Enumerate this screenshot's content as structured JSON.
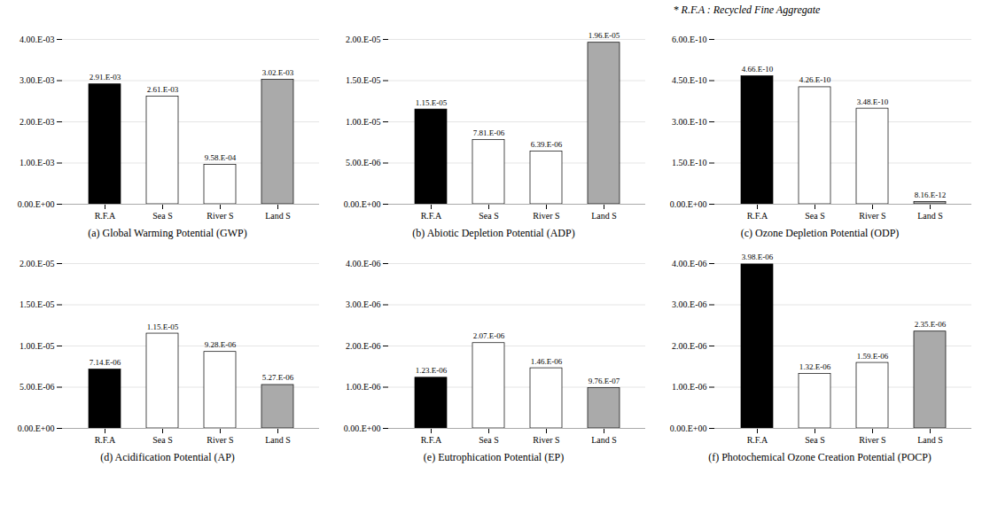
{
  "chart_data": [
    {
      "type": "bar",
      "title": "(a) Global Warming Potential (GWP)",
      "categories": [
        "R.F.A",
        "Sea S",
        "River S",
        "Land S"
      ],
      "values": [
        0.00291,
        0.00261,
        0.000958,
        0.00302
      ],
      "value_labels": [
        "2.91.E-03",
        "2.61.E-03",
        "9.58.E-04",
        "3.02.E-03"
      ],
      "data_labels": true,
      "colors": [
        "#000000",
        "#ffffff",
        "#ffffff",
        "#aaaaaa"
      ],
      "ylim": [
        0,
        0.004
      ],
      "yticks": [
        {
          "value": 0.0,
          "label": "0.00.E+00"
        },
        {
          "value": 0.001,
          "label": "1.00.E-03"
        },
        {
          "value": 0.002,
          "label": "2.00.E-03"
        },
        {
          "value": 0.003,
          "label": "3.00.E-03"
        },
        {
          "value": 0.004,
          "label": "4.00.E-03"
        }
      ],
      "grid": true
    },
    {
      "type": "bar",
      "title": "(b) Abiotic Depletion Potential (ADP)",
      "categories": [
        "R.F.A",
        "Sea S",
        "River S",
        "Land S"
      ],
      "values": [
        1.15e-05,
        7.81e-06,
        6.39e-06,
        1.96e-05
      ],
      "value_labels": [
        "1.15.E-05",
        "7.81.E-06",
        "6.39.E-06",
        "1.96.E-05"
      ],
      "data_labels": true,
      "colors": [
        "#000000",
        "#ffffff",
        "#ffffff",
        "#aaaaaa"
      ],
      "ylim": [
        0,
        2e-05
      ],
      "yticks": [
        {
          "value": 0.0,
          "label": "0.00.E+00"
        },
        {
          "value": 5e-06,
          "label": "5.00.E-06"
        },
        {
          "value": 1e-05,
          "label": "1.00.E-05"
        },
        {
          "value": 1.5e-05,
          "label": "1.50.E-05"
        },
        {
          "value": 2e-05,
          "label": "2.00.E-05"
        }
      ],
      "grid": true
    },
    {
      "type": "bar",
      "title": "(c) Ozone Depletion Potential (ODP)",
      "categories": [
        "R.F.A",
        "Sea S",
        "River S",
        "Land S"
      ],
      "values": [
        4.66e-10,
        4.26e-10,
        3.48e-10,
        8.16e-12
      ],
      "value_labels": [
        "4.66.E-10",
        "4.26.E-10",
        "3.48.E-10",
        "8.16.E-12"
      ],
      "data_labels": true,
      "colors": [
        "#000000",
        "#ffffff",
        "#ffffff",
        "#aaaaaa"
      ],
      "ylim": [
        0,
        6e-10
      ],
      "yticks": [
        {
          "value": 0.0,
          "label": "0.00.E+00"
        },
        {
          "value": 1.5e-10,
          "label": "1.50.E-10"
        },
        {
          "value": 3e-10,
          "label": "3.00.E-10"
        },
        {
          "value": 4.5e-10,
          "label": "4.50.E-10"
        },
        {
          "value": 6e-10,
          "label": "6.00.E-10"
        }
      ],
      "grid": true
    },
    {
      "type": "bar",
      "title": "(d) Acidification Potential (AP)",
      "categories": [
        "R.F.A",
        "Sea S",
        "River S",
        "Land S"
      ],
      "values": [
        7.14e-06,
        1.15e-05,
        9.28e-06,
        5.27e-06
      ],
      "value_labels": [
        "7.14.E-06",
        "1.15.E-05",
        "9.28.E-06",
        "5.27.E-06"
      ],
      "data_labels": true,
      "colors": [
        "#000000",
        "#ffffff",
        "#ffffff",
        "#aaaaaa"
      ],
      "ylim": [
        0,
        2e-05
      ],
      "yticks": [
        {
          "value": 0.0,
          "label": "0.00.E+00"
        },
        {
          "value": 5e-06,
          "label": "5.00.E-06"
        },
        {
          "value": 1e-05,
          "label": "1.00.E-05"
        },
        {
          "value": 1.5e-05,
          "label": "1.50.E-05"
        },
        {
          "value": 2e-05,
          "label": "2.00.E-05"
        }
      ],
      "grid": true
    },
    {
      "type": "bar",
      "title": "(e) Eutrophication Potential (EP)",
      "categories": [
        "R.F.A",
        "Sea S",
        "River S",
        "Land S"
      ],
      "values": [
        1.23e-06,
        2.07e-06,
        1.46e-06,
        9.76e-07
      ],
      "value_labels": [
        "1.23.E-06",
        "2.07.E-06",
        "1.46.E-06",
        "9.76.E-07"
      ],
      "data_labels": true,
      "colors": [
        "#000000",
        "#ffffff",
        "#ffffff",
        "#aaaaaa"
      ],
      "ylim": [
        0,
        4e-06
      ],
      "yticks": [
        {
          "value": 0.0,
          "label": "0.00.E+00"
        },
        {
          "value": 1e-06,
          "label": "1.00.E-06"
        },
        {
          "value": 2e-06,
          "label": "2.00.E-06"
        },
        {
          "value": 3e-06,
          "label": "3.00.E-06"
        },
        {
          "value": 4e-06,
          "label": "4.00.E-06"
        }
      ],
      "grid": true
    },
    {
      "type": "bar",
      "title": "(f) Photochemical Ozone Creation Potential (POCP)",
      "categories": [
        "R.F.A",
        "Sea S",
        "River S",
        "Land S"
      ],
      "values": [
        3.98e-06,
        1.32e-06,
        1.59e-06,
        2.35e-06
      ],
      "value_labels": [
        "3.98.E-06",
        "1.32.E-06",
        "1.59.E-06",
        "2.35.E-06"
      ],
      "data_labels": true,
      "colors": [
        "#000000",
        "#ffffff",
        "#ffffff",
        "#aaaaaa"
      ],
      "ylim": [
        0,
        4e-06
      ],
      "yticks": [
        {
          "value": 0.0,
          "label": "0.00.E+00"
        },
        {
          "value": 1e-06,
          "label": "1.00.E-06"
        },
        {
          "value": 2e-06,
          "label": "2.00.E-06"
        },
        {
          "value": 3e-06,
          "label": "3.00.E-06"
        },
        {
          "value": 4e-06,
          "label": "4.00.E-06"
        }
      ],
      "grid": true
    }
  ],
  "annotation": "* R.F.A : Recycled Fine Aggregate"
}
